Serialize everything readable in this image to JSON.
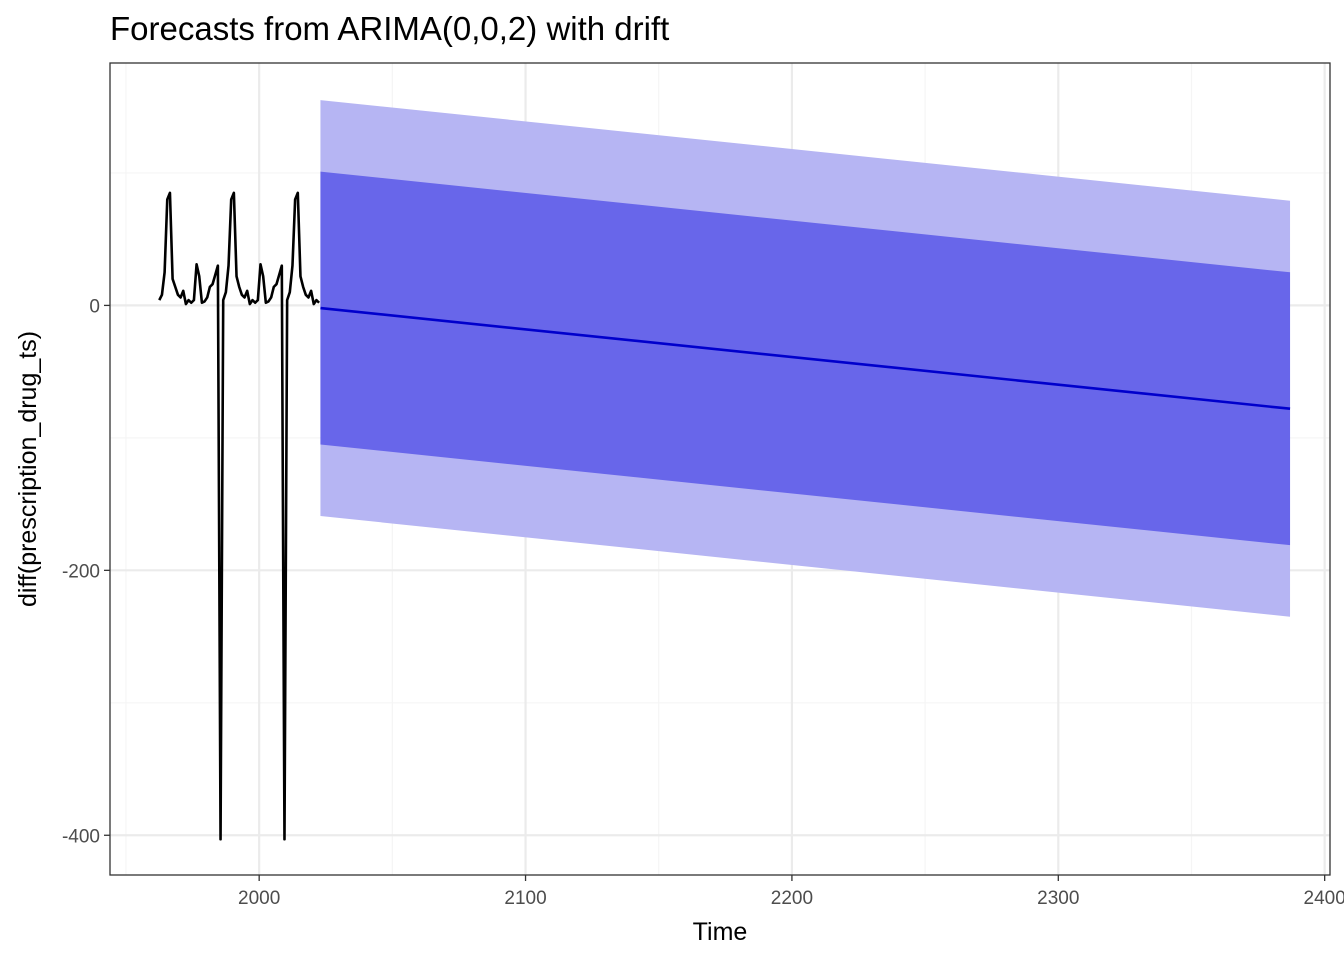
{
  "chart_data": {
    "type": "line",
    "title": "Forecasts from ARIMA(0,0,2) with drift",
    "xlabel": "Time",
    "ylabel": "diff(prescription_drug_ts)",
    "xlim": [
      1944,
      2402
    ],
    "ylim": [
      -430,
      183
    ],
    "x_ticks": [
      2000,
      2100,
      2200,
      2300,
      2400
    ],
    "y_ticks": [
      0,
      -200,
      -400
    ],
    "x_tick_labels": [
      "2000",
      "2100",
      "2200",
      "2300",
      "2400"
    ],
    "y_tick_labels": [
      "0",
      "-200",
      "-400"
    ],
    "grid": true,
    "legend": "none",
    "colors": {
      "history_line": "#000000",
      "forecast_line": "#0000cc",
      "band_80": "#6866ea",
      "band_95": "#b6b5f3",
      "grid_major": "#ebebeb",
      "grid_minor": "#f5f5f5",
      "panel_border": "#333333"
    },
    "history": {
      "x": [
        1962.5,
        1963.5,
        1964.5,
        1965.5,
        1966.5,
        1967.5,
        1968.5,
        1969.5,
        1970.5,
        1971.5,
        1972.5,
        1973.5,
        1974.5,
        1975.5,
        1976.5,
        1977.5,
        1978.5,
        1979.5,
        1980.5,
        1981.5,
        1982.5,
        1983.5,
        1984.5,
        1985.5,
        1986.5,
        1987.5,
        1988.5,
        1989.5,
        1990.5,
        1991.5,
        1992.5,
        1993.5,
        1994.5,
        1995.5,
        1996.5,
        1997.5,
        1998.5,
        1999.5,
        2000.5,
        2001.5,
        2002.5,
        2003.5,
        2004.5,
        2005.5,
        2006.5,
        2007.5,
        2008.5,
        2009.5,
        2010.5,
        2011.5,
        2012.5,
        2013.5,
        2014.5,
        2015.5,
        2016.5,
        2017.5,
        2018.5,
        2019.5,
        2020.5,
        2021.5,
        2022.5
      ],
      "y": [
        4,
        8,
        25,
        80,
        85,
        20,
        14,
        8,
        6,
        11,
        1,
        4,
        2,
        4,
        31,
        22,
        2,
        3,
        6,
        14,
        16,
        23,
        30,
        -403,
        4,
        10,
        30,
        80,
        85,
        22,
        14,
        8,
        6,
        11,
        1,
        4,
        2,
        4,
        31,
        22,
        2,
        3,
        6,
        14,
        16,
        23,
        30,
        -403,
        4,
        10,
        30,
        80,
        85,
        22,
        14,
        8,
        6,
        11,
        1,
        4,
        2
      ]
    },
    "forecast": {
      "x": [
        2023,
        2387
      ],
      "mean": [
        -2,
        -78
      ],
      "lo80": [
        -105,
        -181
      ],
      "hi80": [
        101,
        25
      ],
      "lo95": [
        -159,
        -235
      ],
      "hi95": [
        155,
        79
      ]
    }
  }
}
